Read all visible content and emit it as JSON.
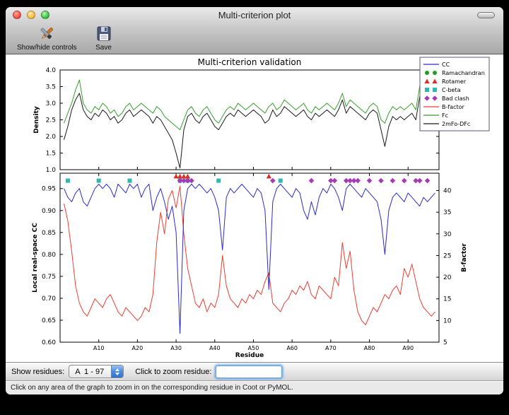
{
  "window": {
    "title": "Multi-criterion plot"
  },
  "toolbar": {
    "buttons": [
      {
        "label": "Show/hide controls",
        "icon": "tools-icon"
      },
      {
        "label": "Save",
        "icon": "save-icon"
      }
    ]
  },
  "controls": {
    "show_residues_label": "Show residues:",
    "residue_range_value": "A  1 - 97",
    "zoom_label": "Click to zoom residue:",
    "zoom_input_value": ""
  },
  "status_bar": {
    "text": "Click on any area of the graph to zoom in on the corresponding residue in Coot or PyMOL."
  },
  "chart_data": {
    "type": "line",
    "title": "Multi-criterion validation",
    "xlabel": "Residue",
    "xlim": [
      0,
      98
    ],
    "x_ticks": [
      {
        "v": 10,
        "label": "A10"
      },
      {
        "v": 20,
        "label": "A20"
      },
      {
        "v": 30,
        "label": "A30"
      },
      {
        "v": 40,
        "label": "A40"
      },
      {
        "v": 50,
        "label": "A50"
      },
      {
        "v": 60,
        "label": "A60"
      },
      {
        "v": 70,
        "label": "A70"
      },
      {
        "v": 80,
        "label": "A80"
      },
      {
        "v": 90,
        "label": "A90"
      }
    ],
    "top": {
      "ylabel": "Density",
      "ylim": [
        1.0,
        4.0
      ],
      "yticks": [
        1.0,
        1.5,
        2.0,
        2.5,
        3.0,
        3.5,
        4.0
      ],
      "series": [
        {
          "name": "Fc",
          "color": "#33a02c",
          "values": [
            2.4,
            2.7,
            3.0,
            3.4,
            3.7,
            3.0,
            2.8,
            2.7,
            2.9,
            2.8,
            3.0,
            2.9,
            2.7,
            2.8,
            2.6,
            2.7,
            2.9,
            3.0,
            2.8,
            2.9,
            3.0,
            2.9,
            2.8,
            2.7,
            2.9,
            2.8,
            2.6,
            2.5,
            2.4,
            2.3,
            2.2,
            2.5,
            2.8,
            2.9,
            2.7,
            2.6,
            2.8,
            2.9,
            2.7,
            2.5,
            2.4,
            2.6,
            2.8,
            2.9,
            2.8,
            3.0,
            2.9,
            2.8,
            2.9,
            3.0,
            2.9,
            2.8,
            2.7,
            2.9,
            3.0,
            2.8,
            2.9,
            3.1,
            3.0,
            2.9,
            2.8,
            2.9,
            3.0,
            2.8,
            2.7,
            2.9,
            2.8,
            2.9,
            3.0,
            2.9,
            2.8,
            3.0,
            3.3,
            2.9,
            3.1,
            3.0,
            2.9,
            2.8,
            2.7,
            2.9,
            3.0,
            2.9,
            2.5,
            2.4,
            2.7,
            2.9,
            2.8,
            2.9,
            2.8,
            2.9,
            3.0,
            2.8,
            3.5,
            3.0,
            3.3,
            3.2,
            3.1
          ]
        },
        {
          "name": "2mFo-DFc",
          "color": "#1a1a1a",
          "values": [
            1.9,
            2.3,
            2.8,
            3.1,
            3.3,
            2.8,
            2.6,
            2.5,
            2.7,
            2.6,
            2.8,
            2.7,
            2.5,
            2.6,
            2.4,
            2.5,
            2.7,
            2.8,
            2.6,
            2.7,
            2.8,
            2.7,
            2.6,
            2.4,
            2.6,
            2.5,
            2.3,
            2.1,
            1.9,
            1.5,
            1.05,
            2.2,
            2.6,
            2.7,
            2.5,
            2.4,
            2.6,
            2.7,
            2.5,
            2.3,
            2.2,
            2.4,
            2.6,
            2.7,
            2.6,
            2.8,
            2.7,
            2.6,
            2.7,
            2.8,
            2.7,
            2.6,
            2.4,
            2.5,
            2.8,
            2.6,
            2.7,
            2.9,
            2.8,
            2.7,
            2.6,
            2.7,
            2.8,
            2.6,
            2.5,
            2.7,
            2.6,
            2.7,
            2.8,
            2.7,
            2.6,
            2.8,
            3.1,
            2.7,
            2.9,
            2.8,
            2.7,
            2.6,
            2.5,
            2.7,
            2.8,
            2.7,
            2.2,
            1.7,
            2.3,
            2.6,
            2.5,
            2.6,
            2.5,
            2.6,
            2.7,
            2.5,
            3.2,
            2.7,
            3.0,
            2.9,
            2.8
          ]
        }
      ]
    },
    "bottom": {
      "ylabel_left": "Local real-space CC",
      "ylim_left": [
        0.6,
        0.985
      ],
      "yticks_left": [
        0.6,
        0.65,
        0.7,
        0.75,
        0.8,
        0.85,
        0.9,
        0.95
      ],
      "ylabel_right": "B-factor",
      "ylim_right": [
        5,
        44
      ],
      "yticks_right": [
        5,
        10,
        15,
        20,
        25,
        30,
        35,
        40
      ],
      "series_left": [
        {
          "name": "CC",
          "color": "#2a2ad4",
          "values": [
            0.95,
            0.93,
            0.92,
            0.94,
            0.95,
            0.92,
            0.91,
            0.93,
            0.95,
            0.96,
            0.95,
            0.96,
            0.95,
            0.93,
            0.96,
            0.95,
            0.94,
            0.96,
            0.95,
            0.96,
            0.93,
            0.95,
            0.96,
            0.9,
            0.93,
            0.95,
            0.92,
            0.88,
            0.91,
            0.85,
            0.62,
            0.9,
            0.95,
            0.96,
            0.95,
            0.96,
            0.95,
            0.94,
            0.95,
            0.93,
            0.9,
            0.81,
            0.93,
            0.95,
            0.94,
            0.95,
            0.96,
            0.95,
            0.94,
            0.93,
            0.95,
            0.94,
            0.9,
            0.72,
            0.92,
            0.95,
            0.96,
            0.95,
            0.94,
            0.93,
            0.95,
            0.94,
            0.9,
            0.88,
            0.92,
            0.89,
            0.93,
            0.95,
            0.94,
            0.96,
            0.95,
            0.93,
            0.9,
            0.95,
            0.96,
            0.95,
            0.94,
            0.93,
            0.95,
            0.94,
            0.93,
            0.92,
            0.88,
            0.8,
            0.9,
            0.93,
            0.94,
            0.93,
            0.92,
            0.94,
            0.93,
            0.92,
            0.91,
            0.93,
            0.92,
            0.93,
            0.94
          ]
        }
      ],
      "series_right": [
        {
          "name": "B-factor",
          "color": "#f03c30",
          "values": [
            37,
            33,
            26,
            18,
            14,
            12,
            11,
            13,
            15,
            14,
            13,
            15,
            16,
            14,
            12,
            11,
            13,
            12,
            11,
            10,
            11,
            13,
            12,
            16,
            28,
            35,
            30,
            38,
            40,
            36,
            41,
            30,
            22,
            18,
            14,
            13,
            15,
            12,
            14,
            13,
            16,
            25,
            18,
            15,
            14,
            13,
            15,
            14,
            16,
            15,
            17,
            16,
            19,
            21,
            14,
            13,
            12,
            14,
            15,
            17,
            16,
            18,
            17,
            19,
            16,
            15,
            18,
            17,
            16,
            15,
            20,
            18,
            28,
            22,
            26,
            17,
            12,
            10,
            9,
            11,
            13,
            12,
            14,
            16,
            15,
            17,
            18,
            16,
            22,
            20,
            23,
            19,
            15,
            13,
            12,
            11,
            12
          ]
        }
      ],
      "markers": [
        {
          "name": "Ramachandran",
          "shape": "circle",
          "color": "#1e9e1e",
          "y": 0.968,
          "residues": [
            31
          ]
        },
        {
          "name": "Rotamer",
          "shape": "triangle",
          "color": "#d93025",
          "y": 0.978,
          "residues": [
            30,
            31,
            32,
            33,
            54
          ]
        },
        {
          "name": "C-beta",
          "shape": "square",
          "color": "#2fb8b0",
          "y": 0.968,
          "residues": [
            2,
            10,
            18,
            31,
            33,
            41,
            57
          ]
        },
        {
          "name": "Bad clash",
          "shape": "diamond",
          "color": "#a838b8",
          "y": 0.968,
          "residues": [
            31,
            32,
            33,
            34,
            55,
            65,
            70,
            71,
            74,
            75,
            76,
            77,
            80,
            83,
            86,
            89,
            92,
            93,
            95
          ]
        }
      ]
    },
    "legend": [
      {
        "label": "CC",
        "type": "line",
        "color": "#2a2ad4"
      },
      {
        "label": "Ramachandran",
        "type": "circle",
        "color": "#1e9e1e"
      },
      {
        "label": "Rotamer",
        "type": "triangle",
        "color": "#d93025"
      },
      {
        "label": "C-beta",
        "type": "square",
        "color": "#2fb8b0"
      },
      {
        "label": "Bad clash",
        "type": "diamond",
        "color": "#a838b8"
      },
      {
        "label": "B-factor",
        "type": "line",
        "color": "#f03c30"
      },
      {
        "label": "Fc",
        "type": "line",
        "color": "#33a02c"
      },
      {
        "label": "2mFo-DFc",
        "type": "line",
        "color": "#1a1a1a"
      }
    ]
  }
}
